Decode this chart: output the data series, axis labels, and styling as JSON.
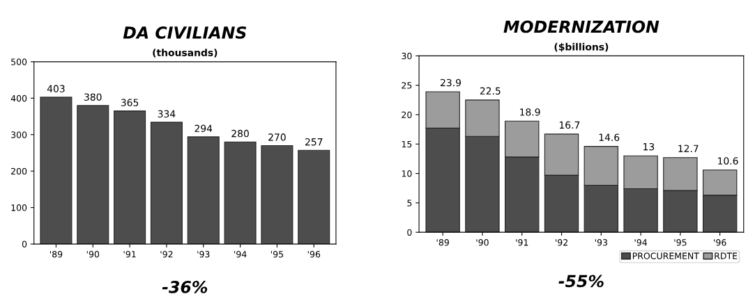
{
  "chart_data": [
    {
      "type": "bar",
      "title": "DA CIVILIANS",
      "subtitle": "(thousands)",
      "categories": [
        "'89",
        "'90",
        "'91",
        "'92",
        "'93",
        "'94",
        "'95",
        "'96"
      ],
      "values": [
        403,
        380,
        365,
        334,
        294,
        280,
        270,
        257
      ],
      "color": "#4d4d4d",
      "data_labels": true,
      "ylim": [
        0,
        500
      ],
      "yticks": [
        0,
        100,
        200,
        300,
        400,
        500
      ],
      "annotations": [
        "-36%"
      ]
    },
    {
      "type": "bar",
      "title": "MODERNIZATION",
      "subtitle": "($billions)",
      "categories": [
        "'89",
        "'90",
        "'91",
        "'92",
        "'93",
        "'94",
        "'95",
        "'96"
      ],
      "stacked": true,
      "series": [
        {
          "name": "PROCUREMENT",
          "color": "#4d4d4d",
          "values": [
            17.7,
            16.3,
            12.8,
            9.7,
            8.0,
            7.4,
            7.1,
            6.3
          ]
        },
        {
          "name": "RDTE",
          "color": "#9c9c9c",
          "values": [
            6.2,
            6.2,
            6.1,
            7.0,
            6.6,
            5.6,
            5.6,
            4.3
          ]
        }
      ],
      "totals": [
        "23.9",
        "22.5",
        "18.9",
        "16.7",
        "14.6",
        "13",
        "12.7",
        "10.6"
      ],
      "ylim": [
        0,
        30
      ],
      "yticks": [
        0,
        5,
        10,
        15,
        20,
        25,
        30
      ],
      "legend": "bottom right",
      "annotations": [
        "-55%"
      ]
    }
  ]
}
